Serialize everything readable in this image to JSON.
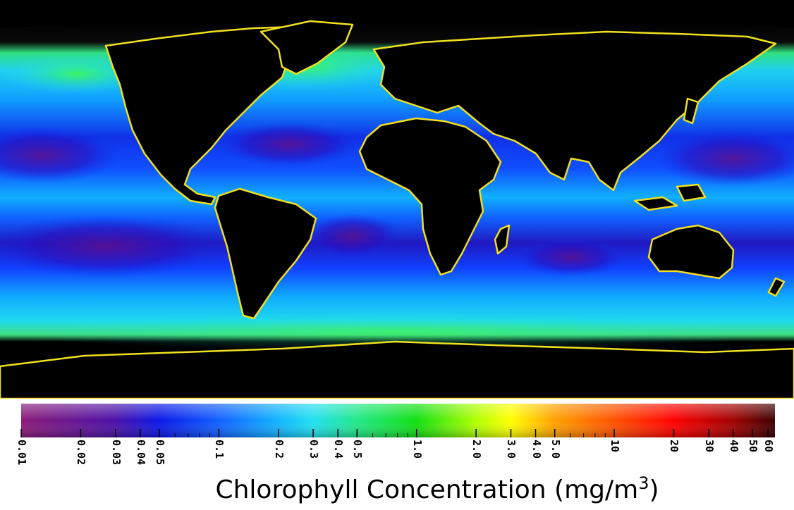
{
  "map": {
    "projection": "equirectangular",
    "land_color": "#000000"
  },
  "colorbar": {
    "title_main": "Chlorophyll Concentration (mg/m",
    "title_sup": "3",
    "title_end": ")",
    "scale": "log",
    "min": 0.01,
    "max": 65,
    "tick_values": [
      0.01,
      0.02,
      0.03,
      0.04,
      0.05,
      0.1,
      0.2,
      0.3,
      0.4,
      0.5,
      1.0,
      2.0,
      3.0,
      4.0,
      5.0,
      10,
      20,
      30,
      40,
      50,
      60
    ],
    "tick_labels": [
      "0.01",
      "0.02",
      "0.03",
      "0.04",
      "0.05",
      "0.1",
      "0.2",
      "0.3",
      "0.4",
      "0.5",
      "1.0",
      "2.0",
      "3.0",
      "4.0",
      "5.0",
      "10",
      "20",
      "30",
      "40",
      "50",
      "60"
    ],
    "color_stops": [
      {
        "value": 0.01,
        "color": "#8a1a78"
      },
      {
        "value": 0.03,
        "color": "#4a10a8"
      },
      {
        "value": 0.05,
        "color": "#0a18e8"
      },
      {
        "value": 0.1,
        "color": "#1060ff"
      },
      {
        "value": 0.2,
        "color": "#10b4ff"
      },
      {
        "value": 0.3,
        "color": "#20e0f0"
      },
      {
        "value": 0.5,
        "color": "#20e888"
      },
      {
        "value": 1.0,
        "color": "#10e010"
      },
      {
        "value": 2.0,
        "color": "#b0ff00"
      },
      {
        "value": 3.0,
        "color": "#ffff00"
      },
      {
        "value": 5.0,
        "color": "#ffa000"
      },
      {
        "value": 10,
        "color": "#ff5000"
      },
      {
        "value": 20,
        "color": "#ff0000"
      },
      {
        "value": 40,
        "color": "#a00000"
      },
      {
        "value": 65,
        "color": "#3a0000"
      }
    ]
  }
}
